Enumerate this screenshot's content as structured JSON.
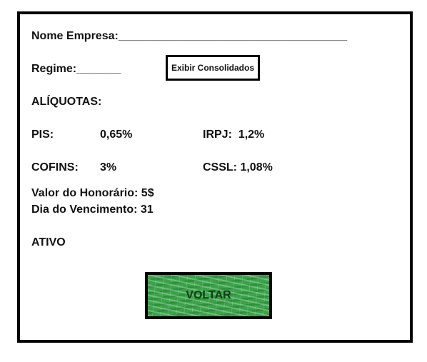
{
  "company": {
    "label": "Nome Empresa:",
    "value": "____________________________________"
  },
  "regime": {
    "label": "Regime:",
    "value": "_______"
  },
  "consolidated_button": {
    "label": "Exibir Consolidados"
  },
  "rates": {
    "title": "ALÍQUOTAS:",
    "pis": {
      "label": "PIS:",
      "value": "0,65%"
    },
    "irpj": {
      "label": "IRPJ:",
      "value": "1,2%"
    },
    "cofins": {
      "label": "COFINS:",
      "value": "3%"
    },
    "cssl": {
      "label": "CSSL:",
      "value": "1,08%"
    }
  },
  "fee": {
    "label": "Valor do Honorário:",
    "value": "5$"
  },
  "due_day": {
    "label": "Dia do Vencimento:",
    "value": "31"
  },
  "status": {
    "label": "ATIVO"
  },
  "back_button": {
    "label": "VOLTAR",
    "color": "#3aa348"
  }
}
